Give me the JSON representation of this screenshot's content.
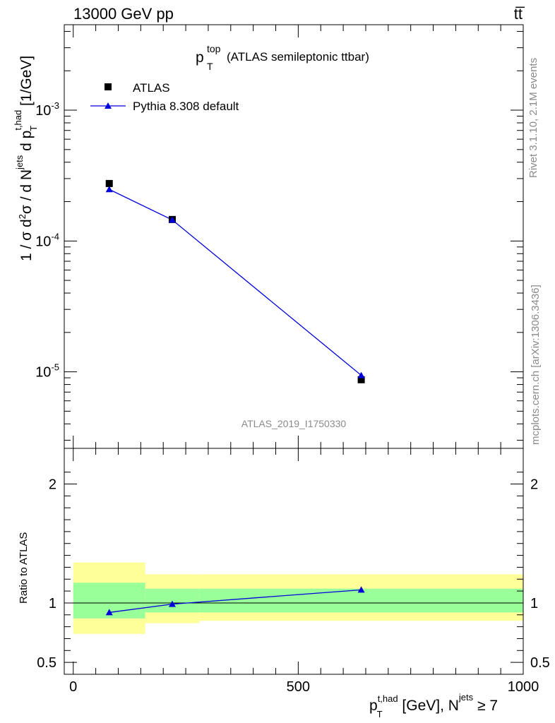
{
  "header": {
    "energy_label": "13000 GeV pp",
    "process_label": "tt̅"
  },
  "side_labels": {
    "rivet": "Rivet 3.1.10,  2.1M events",
    "mcplots": "mcplots.cern.ch [arXiv:1306.3436]"
  },
  "plot": {
    "title_main": "p",
    "title_sup": "top",
    "title_sub": "T",
    "title_rest": "(ATLAS semileptonic ttbar)",
    "analysis_id": "ATLAS_2019_I1750330",
    "ylabel": "1 / σ d²σ / d N^jets d p_T^t,had [1/GeV]",
    "ratio_ylabel": "Ratio to ATLAS",
    "xlabel": "p_T^t,had [GeV], N^jets ≥ 7"
  },
  "legend": {
    "data_label": "ATLAS",
    "mc_label": "Pythia 8.308 default"
  },
  "colors": {
    "data": "#000000",
    "mc": "#0000dd",
    "band_inner": "#99ff99",
    "band_outer": "#ffff99"
  },
  "chart_data": [
    {
      "type": "scatter",
      "panel": "main",
      "yscale": "log",
      "xlim": [
        -20,
        1000
      ],
      "ylim": [
        2.6e-06,
        0.0045
      ],
      "x_ticks": [
        "0",
        "500",
        "1000"
      ],
      "y_ticks": [
        "10^-5",
        "10^-4",
        "10^-3"
      ],
      "series": [
        {
          "name": "ATLAS",
          "x": [
            80,
            220,
            640
          ],
          "y": [
            0.000275,
            0.000146,
            8.7e-06
          ]
        },
        {
          "name": "Pythia 8.308 default",
          "x": [
            80,
            220,
            640
          ],
          "y": [
            0.000248,
            0.000145,
            9.4e-06
          ]
        }
      ]
    },
    {
      "type": "line",
      "panel": "ratio",
      "xlim": [
        -20,
        1000
      ],
      "ylim": [
        0.4,
        2.3
      ],
      "y_ticks": [
        "0.5",
        "1",
        "2"
      ],
      "bins": [
        [
          0,
          160
        ],
        [
          160,
          280
        ],
        [
          280,
          1000
        ]
      ],
      "band_inner": [
        [
          0.87,
          1.17
        ],
        [
          0.92,
          1.12
        ],
        [
          0.92,
          1.12
        ]
      ],
      "band_outer": [
        [
          0.74,
          1.34
        ],
        [
          0.83,
          1.24
        ],
        [
          0.85,
          1.24
        ]
      ],
      "series": [
        {
          "name": "Pythia 8.308 default",
          "x": [
            80,
            220,
            640
          ],
          "y": [
            0.92,
            0.99,
            1.11
          ],
          "yerr": [
            0.01,
            0.01,
            0.02
          ]
        }
      ]
    }
  ]
}
